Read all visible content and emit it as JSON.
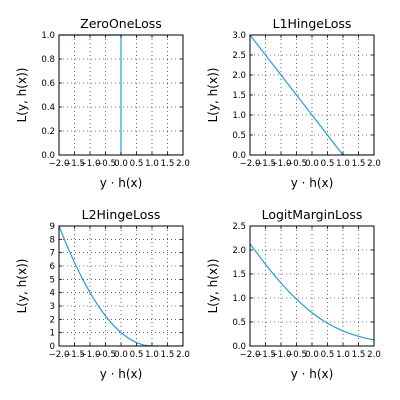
{
  "colors": {
    "line": "#1f9ee6",
    "frame": "#000000",
    "background": "#ffffff"
  },
  "chart_data": [
    {
      "type": "line",
      "title": "ZeroOneLoss",
      "xlabel": "y ⋅ h(x)",
      "ylabel": "L(y, h(x))",
      "xlim": [
        -2.0,
        2.0
      ],
      "ylim": [
        0.0,
        1.0
      ],
      "xticks": [
        "−2.0",
        "−1.5",
        "−1.0",
        "−0.5",
        "0.0",
        "0.5",
        "1.0",
        "1.5",
        "2.0"
      ],
      "yticks": [
        "0.0",
        "0.2",
        "0.4",
        "0.6",
        "0.8",
        "1.0"
      ],
      "grid": true,
      "x": [
        -2.0,
        -1.0,
        0.0,
        0.0,
        1.0,
        2.0
      ],
      "y": [
        1.0,
        1.0,
        1.0,
        0.0,
        0.0,
        0.0
      ]
    },
    {
      "type": "line",
      "title": "L1HingeLoss",
      "xlabel": "y ⋅ h(x)",
      "ylabel": "L(y, h(x))",
      "xlim": [
        -2.0,
        2.0
      ],
      "ylim": [
        0.0,
        3.0
      ],
      "xticks": [
        "−2.0",
        "−1.5",
        "−1.0",
        "−0.5",
        "0.0",
        "0.5",
        "1.0",
        "1.5",
        "2.0"
      ],
      "yticks": [
        "0.0",
        "0.5",
        "1.0",
        "1.5",
        "2.0",
        "2.5",
        "3.0"
      ],
      "grid": true,
      "x": [
        -2.0,
        -1.5,
        -1.0,
        -0.5,
        0.0,
        0.5,
        1.0,
        1.5,
        2.0
      ],
      "y": [
        3.0,
        2.5,
        2.0,
        1.5,
        1.0,
        0.5,
        0.0,
        0.0,
        0.0
      ]
    },
    {
      "type": "line",
      "title": "L2HingeLoss",
      "xlabel": "y ⋅ h(x)",
      "ylabel": "L(y, h(x))",
      "xlim": [
        -2.0,
        2.0
      ],
      "ylim": [
        0,
        9
      ],
      "xticks": [
        "−2.0",
        "−1.5",
        "−1.0",
        "−0.5",
        "0.0",
        "0.5",
        "1.0",
        "1.5",
        "2.0"
      ],
      "yticks": [
        "0",
        "1",
        "2",
        "3",
        "4",
        "5",
        "6",
        "7",
        "8",
        "9"
      ],
      "grid": true,
      "x": [
        -2.0,
        -1.75,
        -1.5,
        -1.25,
        -1.0,
        -0.75,
        -0.5,
        -0.25,
        0.0,
        0.25,
        0.5,
        0.75,
        1.0,
        1.5,
        2.0
      ],
      "y": [
        9.0,
        7.5625,
        6.25,
        5.0625,
        4.0,
        3.0625,
        2.25,
        1.5625,
        1.0,
        0.5625,
        0.25,
        0.0625,
        0.0,
        0.0,
        0.0
      ]
    },
    {
      "type": "line",
      "title": "LogitMarginLoss",
      "xlabel": "y ⋅ h(x)",
      "ylabel": "L(y, h(x))",
      "xlim": [
        -2.0,
        2.0
      ],
      "ylim": [
        0.0,
        2.5
      ],
      "xticks": [
        "−2.0",
        "−1.5",
        "−1.0",
        "−0.5",
        "0.0",
        "0.5",
        "1.0",
        "1.5",
        "2.0"
      ],
      "yticks": [
        "0.0",
        "0.5",
        "1.0",
        "1.5",
        "2.0",
        "2.5"
      ],
      "grid": true,
      "x": [
        -2.0,
        -1.75,
        -1.5,
        -1.25,
        -1.0,
        -0.75,
        -0.5,
        -0.25,
        0.0,
        0.25,
        0.5,
        0.75,
        1.0,
        1.25,
        1.5,
        1.75,
        2.0
      ],
      "y": [
        2.127,
        1.913,
        1.701,
        1.502,
        1.313,
        1.136,
        0.974,
        0.826,
        0.693,
        0.576,
        0.474,
        0.386,
        0.313,
        0.251,
        0.201,
        0.16,
        0.127
      ]
    }
  ]
}
